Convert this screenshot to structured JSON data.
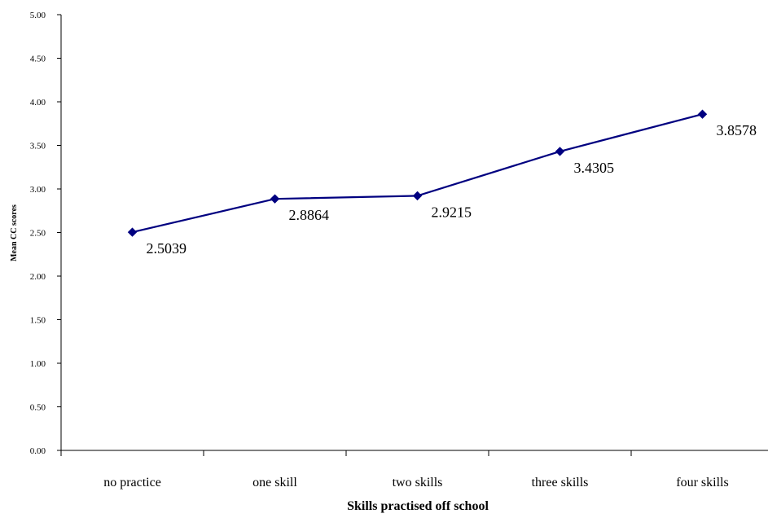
{
  "chart_data": {
    "type": "line",
    "title": "",
    "xlabel": "Skills practised off school",
    "ylabel": "Mean CC scores",
    "categories": [
      "no practice",
      "one skill",
      "two skills",
      "three skills",
      "four skills"
    ],
    "series": [
      {
        "values": [
          2.5039,
          2.8864,
          2.9215,
          3.4305,
          3.8578
        ],
        "labels": [
          "2.5039",
          "2.8864",
          "2.9215",
          "3.4305",
          "3.8578"
        ],
        "color": "#000080",
        "marker": "diamond"
      }
    ],
    "ylim": [
      0,
      5
    ],
    "yticks": [
      "0.00",
      "0.50",
      "1.00",
      "1.50",
      "2.00",
      "2.50",
      "3.00",
      "3.50",
      "4.00",
      "4.50",
      "5.00"
    ],
    "grid": false,
    "legend": "none"
  }
}
